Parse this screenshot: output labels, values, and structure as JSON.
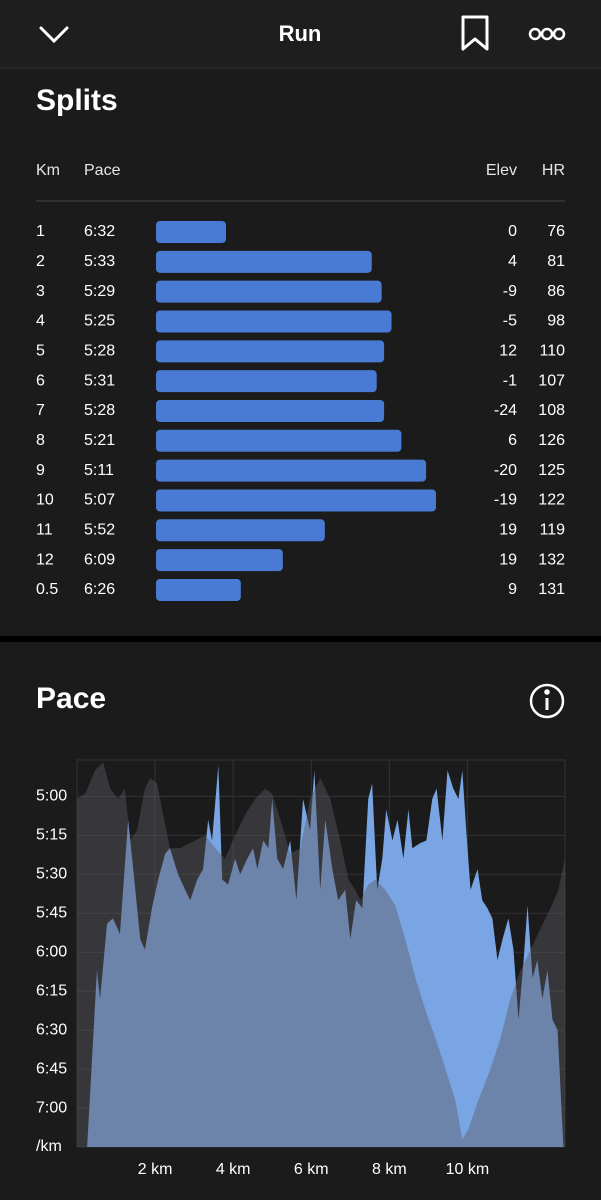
{
  "header": {
    "title": "Run"
  },
  "splits": {
    "title": "Splits",
    "columns": [
      "Km",
      "Pace",
      "Elev",
      "HR"
    ],
    "rows": [
      [
        1,
        "6:32",
        0,
        76
      ],
      [
        2,
        "5:33",
        4,
        81
      ],
      [
        3,
        "5:29",
        -9,
        86
      ],
      [
        4,
        "5:25",
        -5,
        98
      ],
      [
        5,
        "5:28",
        12,
        110
      ],
      [
        6,
        "5:31",
        -1,
        107
      ],
      [
        7,
        "5:28",
        -24,
        108
      ],
      [
        8,
        "5:21",
        6,
        126
      ],
      [
        9,
        "5:11",
        -20,
        125
      ],
      [
        10,
        "5:07",
        -19,
        122
      ],
      [
        11,
        "5:52",
        19,
        119
      ],
      [
        12,
        "6:09",
        19,
        132
      ],
      [
        0.5,
        "6:26",
        9,
        131
      ]
    ]
  },
  "chart_data": {
    "type": "area",
    "title": "Pace",
    "xlim": [
      0,
      12.5
    ],
    "xticks": [
      {
        "value": 2,
        "label": "2 km"
      },
      {
        "value": 4,
        "label": "4 km"
      },
      {
        "value": 6,
        "label": "6 km"
      },
      {
        "value": 8,
        "label": "8 km"
      },
      {
        "value": 10,
        "label": "10 km"
      }
    ],
    "ylim": [
      435,
      286
    ],
    "yticks": [
      {
        "value": 300,
        "label": "5:00"
      },
      {
        "value": 315,
        "label": "5:15"
      },
      {
        "value": 330,
        "label": "5:30"
      },
      {
        "value": 345,
        "label": "5:45"
      },
      {
        "value": 360,
        "label": "6:00"
      },
      {
        "value": 375,
        "label": "6:15"
      },
      {
        "value": 390,
        "label": "6:30"
      },
      {
        "value": 405,
        "label": "6:45"
      },
      {
        "value": 420,
        "label": "7:00"
      },
      {
        "value": 435,
        "label": "/km"
      }
    ],
    "grid": true,
    "series": [
      {
        "color": "#7aa5e4",
        "x": [
          0.26,
          0.51,
          0.59,
          0.77,
          0.92,
          1.1,
          1.31,
          1.44,
          1.62,
          1.74,
          1.92,
          2.08,
          2.26,
          2.38,
          2.59,
          2.77,
          2.9,
          3.08,
          3.23,
          3.36,
          3.46,
          3.62,
          3.72,
          3.87,
          4.05,
          4.18,
          4.36,
          4.51,
          4.62,
          4.77,
          4.9,
          5.0,
          5.13,
          5.28,
          5.46,
          5.62,
          5.79,
          5.97,
          6.08,
          6.23,
          6.36,
          6.54,
          6.69,
          6.87,
          7.0,
          7.15,
          7.31,
          7.46,
          7.56,
          7.69,
          7.82,
          7.92,
          8.08,
          8.21,
          8.36,
          8.49,
          8.59,
          8.79,
          8.95,
          9.1,
          9.21,
          9.36,
          9.49,
          9.64,
          9.77,
          9.87,
          9.97,
          10.08,
          10.26,
          10.38,
          10.51,
          10.64,
          10.77,
          10.9,
          11.05,
          11.18,
          11.31,
          11.44,
          11.54,
          11.67,
          11.79,
          11.92,
          12.05,
          12.18,
          12.31,
          12.46
        ],
        "values": [
          435,
          367,
          378,
          349,
          347,
          353,
          309,
          328,
          355,
          359,
          343,
          332,
          322,
          320,
          330,
          336,
          340,
          332,
          328,
          309,
          317,
          288,
          332,
          334,
          324,
          330,
          324,
          320,
          328,
          317,
          320,
          301,
          324,
          328,
          317,
          340,
          301,
          313,
          290,
          336,
          309,
          328,
          340,
          336,
          355,
          340,
          343,
          301,
          295,
          336,
          324,
          305,
          317,
          309,
          324,
          305,
          320,
          318,
          317,
          301,
          297,
          317,
          290,
          297,
          301,
          290,
          313,
          336,
          328,
          340,
          343,
          347,
          363,
          355,
          347,
          359,
          386,
          363,
          342,
          370,
          363,
          378,
          367,
          386,
          390,
          435
        ]
      },
      {
        "color": "#5a5a64",
        "x": [
          0,
          0.21,
          0.46,
          0.67,
          0.85,
          1.05,
          1.23,
          1.36,
          1.54,
          1.74,
          1.87,
          2.05,
          2.18,
          2.38,
          2.64,
          3.03,
          3.28,
          3.54,
          3.79,
          4.05,
          4.31,
          4.56,
          4.82,
          5.0,
          5.21,
          5.46,
          5.72,
          5.97,
          6.23,
          6.49,
          6.74,
          6.95,
          7.13,
          7.26,
          7.46,
          7.64,
          7.9,
          8.15,
          8.41,
          8.67,
          8.92,
          9.18,
          9.44,
          9.69,
          9.87,
          10.03,
          10.28,
          10.59,
          10.85,
          11.1,
          11.36,
          11.62,
          11.87,
          12.13,
          12.33,
          12.5
        ],
        "values": [
          301,
          299,
          290,
          287,
          297,
          301,
          297,
          317,
          313,
          297,
          293,
          295,
          305,
          320,
          320,
          317,
          315,
          320,
          324,
          315,
          307,
          301,
          297,
          299,
          309,
          322,
          320,
          301,
          293,
          301,
          317,
          332,
          336,
          340,
          334,
          332,
          336,
          342,
          355,
          370,
          382,
          393,
          405,
          417,
          432,
          428,
          417,
          405,
          393,
          378,
          367,
          359,
          351,
          343,
          336,
          324
        ]
      }
    ]
  }
}
